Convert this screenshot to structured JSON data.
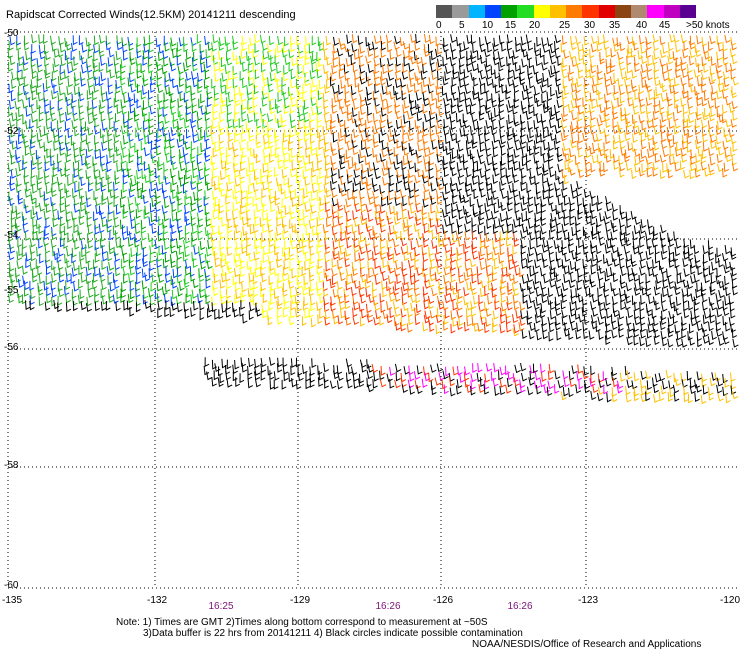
{
  "title": "Rapidscat Corrected Winds(12.5KM) 20141211 descending",
  "legend": {
    "ticks": [
      "0",
      "5",
      "10",
      "15",
      "20",
      "25",
      "30",
      "35",
      "40",
      "45",
      ">50 knots"
    ],
    "colors": [
      "#555555",
      "#9a9a9a",
      "#00b4ff",
      "#0044ff",
      "#00a000",
      "#22dd22",
      "#ffff00",
      "#ffc000",
      "#ff7a00",
      "#ff3300",
      "#e00000",
      "#8b4513",
      "#b08a70",
      "#ff00ff",
      "#c000c0",
      "#5a0090"
    ]
  },
  "map": {
    "lat_labels": [
      "-50",
      "-52",
      "-54",
      "-55",
      "-56",
      "-58",
      "-60"
    ],
    "lon_labels": [
      "-135",
      "-132",
      "-129",
      "-126",
      "-123",
      "-120"
    ],
    "time_labels": [
      "16:25",
      "16:26",
      "16:26"
    ],
    "lon_range": [
      -135,
      -120
    ],
    "lat_range": [
      -50,
      -60
    ]
  },
  "notes": {
    "line1": "Note: 1) Times are GMT 2)Times along bottom correspond to measurement at ~50S",
    "line2": "3)Data buffer is 22 hrs from 20141211 4) Black circles indicate possible contamination",
    "credit": "NOAA/NESDIS/Office of Research and Applications"
  }
}
